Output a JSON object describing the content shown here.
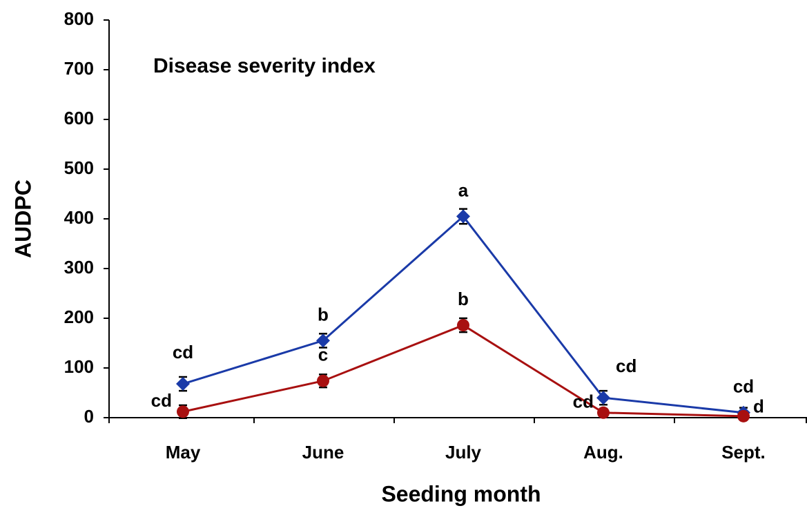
{
  "chart_data": {
    "type": "line",
    "title": "Disease severity index",
    "x_label": "Seeding month",
    "y_label": "AUDPC",
    "categories": [
      "May",
      "June",
      "July",
      "Aug.",
      "Sept."
    ],
    "series": [
      {
        "color": "#1a3aa8",
        "marker": "diamond",
        "values": [
          68,
          155,
          405,
          40,
          10
        ],
        "errors": [
          14,
          14,
          15,
          14,
          10
        ],
        "letters": [
          "cd",
          "b",
          "a",
          "cd",
          "cd"
        ]
      },
      {
        "color": "#a81010",
        "marker": "circle",
        "values": [
          12,
          74,
          186,
          10,
          3
        ],
        "errors": [
          13,
          13,
          14,
          8,
          6
        ],
        "letters": [
          "cd",
          "c",
          "b",
          "cd",
          "d"
        ]
      }
    ],
    "ylim": [
      0,
      800
    ],
    "yticks": [
      0,
      100,
      200,
      300,
      400,
      500,
      600,
      700,
      800
    ]
  }
}
